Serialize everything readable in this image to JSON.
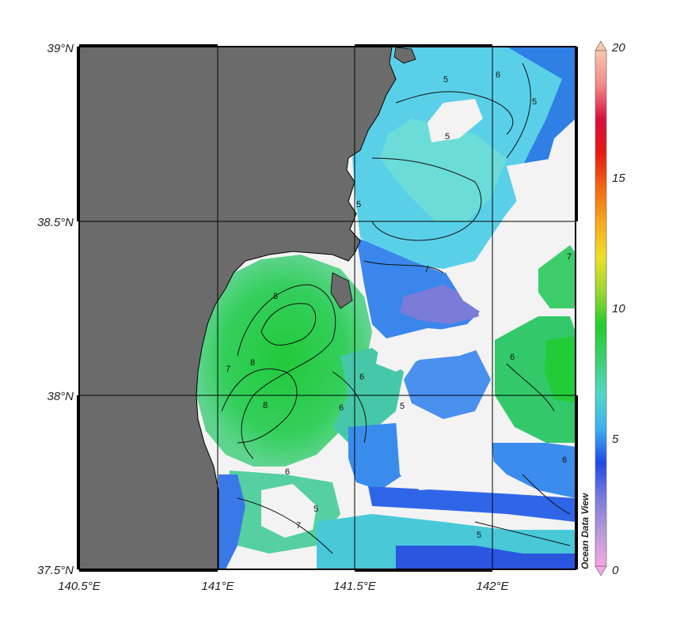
{
  "map": {
    "x_tick_labels": [
      "140.5°E",
      "141°E",
      "141.5°E",
      "142°E"
    ],
    "y_tick_labels": [
      "39°N",
      "38.5°N",
      "38°N",
      "37.5°N"
    ],
    "land_color": "#6b6b6b",
    "nodata_color": "#f2f2f2",
    "grid_color": "#000000",
    "extent": {
      "lon": [
        140.5,
        142.3
      ],
      "lat": [
        37.5,
        39.0
      ]
    }
  },
  "colorbar": {
    "tick_labels": [
      "20",
      "15",
      "10",
      "5",
      "0"
    ],
    "range": [
      0,
      20
    ],
    "colors": [
      "#f7a6e6",
      "#b89ad8",
      "#7a7bdc",
      "#1f49e6",
      "#3fb0f0",
      "#52d8c8",
      "#3fd074",
      "#22cc2c",
      "#9cd634",
      "#f0e028",
      "#f7a91e",
      "#f06a12",
      "#e81a12",
      "#d80e3a",
      "#f28a8a",
      "#f8c8a8"
    ]
  },
  "watermark": "Ocean Data View",
  "contour_labels": [
    "5",
    "6",
    "5",
    "5",
    "5",
    "7",
    "8",
    "8",
    "7",
    "8",
    "6",
    "6",
    "5",
    "6",
    "7",
    "6",
    "5",
    "7",
    "6",
    "5"
  ]
}
